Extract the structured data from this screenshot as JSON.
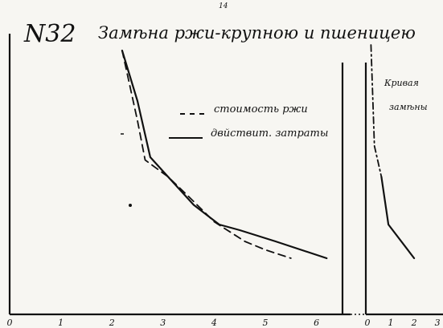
{
  "page_marks": {
    "top": "14"
  },
  "chart_data": [
    {
      "type": "line",
      "number_label": "N32",
      "title": "Замѣна ржи-крупною и пшеницею",
      "xlabel": "",
      "ylabel": "",
      "xlim": [
        0,
        6.4
      ],
      "ylim": [
        0,
        10
      ],
      "x_ticks": [
        "0",
        "1",
        "2",
        "3",
        "4",
        "5",
        "6"
      ],
      "grid": false,
      "legend_position": "top-right",
      "series": [
        {
          "name": "стоимость ржи",
          "style": "dashed",
          "color": "#111111",
          "points": [
            [
              2.2,
              9.4
            ],
            [
              2.5,
              6.9
            ],
            [
              2.65,
              5.5
            ],
            [
              3.1,
              4.9
            ],
            [
              3.5,
              4.2
            ],
            [
              4.0,
              3.3
            ],
            [
              4.6,
              2.6
            ],
            [
              5.0,
              2.3
            ],
            [
              5.5,
              2.0
            ]
          ]
        },
        {
          "name": "двйствит. затраты",
          "style": "solid",
          "color": "#111111",
          "points": [
            [
              2.2,
              9.4
            ],
            [
              2.5,
              7.6
            ],
            [
              2.75,
              5.6
            ],
            [
              3.1,
              4.9
            ],
            [
              3.6,
              3.9
            ],
            [
              4.1,
              3.2
            ],
            [
              4.5,
              3.0
            ],
            [
              5.2,
              2.6
            ],
            [
              6.2,
              2.0
            ]
          ]
        }
      ]
    },
    {
      "type": "line",
      "title": "Кривая замѣны",
      "xlabel": "",
      "ylabel": "",
      "xlim": [
        0,
        3.1
      ],
      "ylim": [
        0,
        10
      ],
      "x_ticks": [
        "0",
        "1",
        "2",
        "3"
      ],
      "grid": false,
      "series": [
        {
          "style": "dash-dot",
          "color": "#111111",
          "points": [
            [
              0.15,
              9.6
            ],
            [
              0.3,
              6.0
            ],
            [
              0.6,
              4.9
            ]
          ]
        },
        {
          "style": "solid",
          "color": "#111111",
          "points": [
            [
              0.6,
              4.9
            ],
            [
              0.9,
              3.2
            ],
            [
              2.0,
              2.0
            ]
          ]
        }
      ]
    }
  ]
}
